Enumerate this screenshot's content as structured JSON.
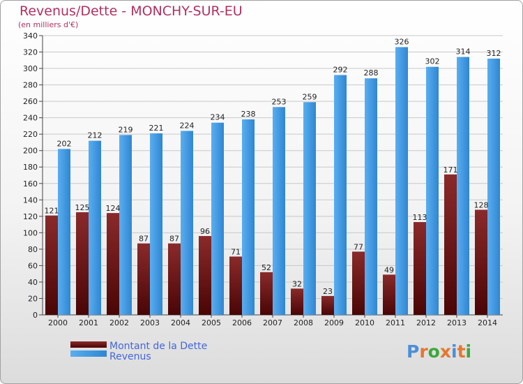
{
  "chart_data": {
    "type": "bar",
    "title": "Revenus/Dette - MONCHY-SUR-EU",
    "subtitle": "(en milliers d'€)",
    "categories": [
      "2000",
      "2001",
      "2002",
      "2003",
      "2004",
      "2005",
      "2006",
      "2007",
      "2008",
      "2009",
      "2010",
      "2011",
      "2012",
      "2013",
      "2014"
    ],
    "series": [
      {
        "name": "Montant de la Dette",
        "color": "#7a1a1a",
        "values": [
          121,
          125,
          124,
          87,
          87,
          96,
          71,
          52,
          32,
          23,
          77,
          49,
          113,
          171,
          128
        ]
      },
      {
        "name": "Revenus",
        "color": "#3a97e0",
        "values": [
          202,
          212,
          219,
          221,
          224,
          234,
          238,
          253,
          259,
          292,
          288,
          326,
          302,
          314,
          312
        ]
      }
    ],
    "ylim": [
      0,
      340
    ],
    "yticks": [
      0,
      20,
      40,
      60,
      80,
      100,
      120,
      140,
      160,
      180,
      200,
      220,
      240,
      260,
      280,
      300,
      320,
      340
    ],
    "grid": true,
    "legend_position": "bottom-left"
  },
  "logo": {
    "text": "Proxiti"
  }
}
